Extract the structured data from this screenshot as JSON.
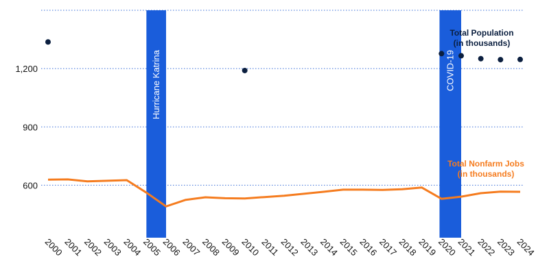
{
  "chart_data": {
    "type": "line",
    "x": [
      2000,
      2001,
      2002,
      2003,
      2004,
      2005,
      2006,
      2007,
      2008,
      2009,
      2010,
      2011,
      2012,
      2013,
      2014,
      2015,
      2016,
      2017,
      2018,
      2019,
      2020,
      2021,
      2022,
      2023,
      2024
    ],
    "yticks": [
      600,
      900,
      "1,200"
    ],
    "ylim": [
      330,
      1500
    ],
    "grid": true,
    "series": [
      {
        "name_lines": [
          "Total Population",
          "(in thousands)"
        ],
        "style": "scatter",
        "color": "#0b1f3f",
        "points": [
          {
            "x": 2000,
            "y": 1337
          },
          {
            "x": 2010,
            "y": 1190
          },
          {
            "x": 2020,
            "y": 1277
          },
          {
            "x": 2021,
            "y": 1266
          },
          {
            "x": 2022,
            "y": 1251
          },
          {
            "x": 2023,
            "y": 1246
          },
          {
            "x": 2024,
            "y": 1247
          }
        ]
      },
      {
        "name_lines": [
          "Total Nonfarm Jobs",
          "(in thousands)"
        ],
        "style": "line",
        "color": "#f57c1f",
        "values": [
          629,
          630,
          620,
          623,
          626,
          562,
          491,
          525,
          538,
          533,
          532,
          539,
          546,
          556,
          566,
          577,
          577,
          576,
          579,
          588,
          530,
          541,
          559,
          567,
          566
        ]
      }
    ],
    "annotations": [
      {
        "label": "Hurricane Katrina",
        "x_start": 2005,
        "x_end": 2006,
        "color": "#1a5ddb"
      },
      {
        "label": "COVID-19",
        "x_start": 2019.9,
        "x_end": 2021,
        "color": "#1a5ddb"
      }
    ]
  }
}
